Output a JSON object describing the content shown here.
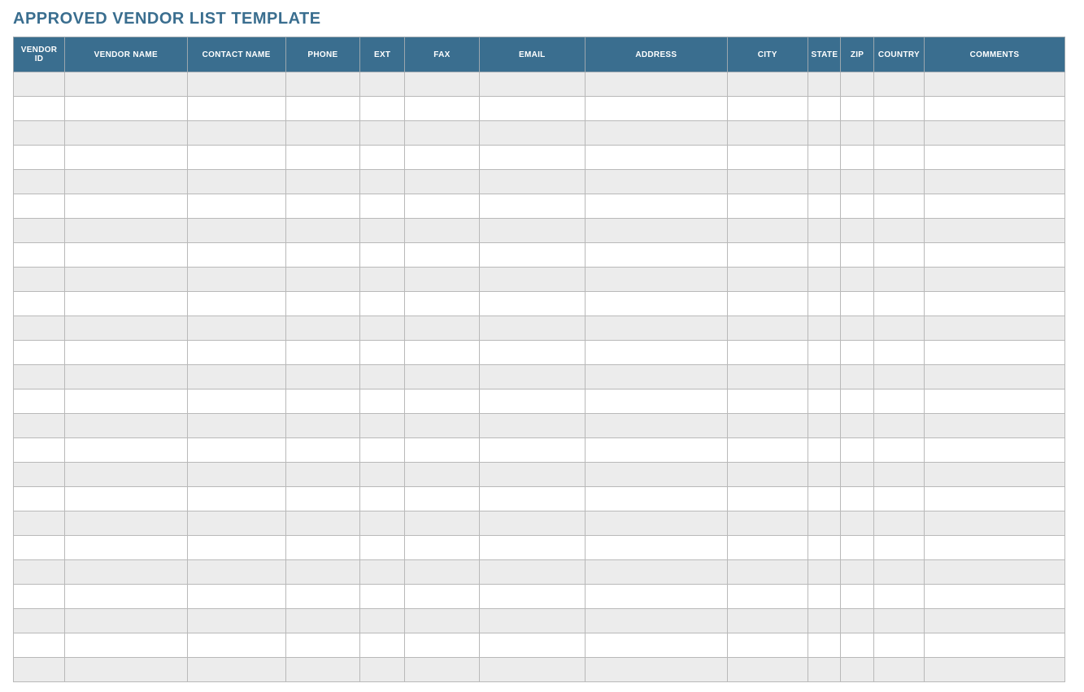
{
  "title": "APPROVED VENDOR LIST TEMPLATE",
  "title_color": "#3a6e8f",
  "header_bg": "#3a6e8f",
  "header_text_color": "#ffffff",
  "row_alt_bg": "#ececec",
  "row_bg": "#ffffff",
  "border_color": "#b9b9b9",
  "columns": [
    {
      "label": "VENDOR ID",
      "width": 62
    },
    {
      "label": "VENDOR NAME",
      "width": 148
    },
    {
      "label": "CONTACT NAME",
      "width": 119
    },
    {
      "label": "PHONE",
      "width": 90
    },
    {
      "label": "EXT",
      "width": 54
    },
    {
      "label": "FAX",
      "width": 90
    },
    {
      "label": "EMAIL",
      "width": 128
    },
    {
      "label": "ADDRESS",
      "width": 172
    },
    {
      "label": "CITY",
      "width": 97
    },
    {
      "label": "STATE",
      "width": 40
    },
    {
      "label": "ZIP",
      "width": 40
    },
    {
      "label": "COUNTRY",
      "width": 61
    },
    {
      "label": "COMMENTS",
      "width": 170
    }
  ],
  "row_count": 25,
  "rows": []
}
